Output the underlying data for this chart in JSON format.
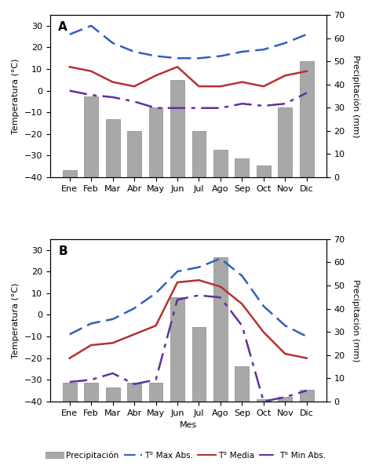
{
  "months": [
    "Ene",
    "Feb",
    "Mar",
    "Abr",
    "May",
    "Jun",
    "Jul",
    "Ago",
    "Sep",
    "Oct",
    "Nov",
    "Dic"
  ],
  "panel_A": {
    "label": "A",
    "precip": [
      3,
      35,
      25,
      20,
      30,
      42,
      20,
      12,
      8,
      5,
      30,
      50
    ],
    "t_max": [
      26,
      30,
      22,
      18,
      16,
      15,
      15,
      16,
      18,
      19,
      22,
      26
    ],
    "t_media": [
      11,
      9,
      4,
      2,
      7,
      11,
      2,
      2,
      4,
      2,
      7,
      9
    ],
    "t_min": [
      0,
      -2,
      -3,
      -5,
      -8,
      -8,
      -8,
      -8,
      -6,
      -7,
      -6,
      -1
    ],
    "ylim_temp": [
      -40,
      35
    ],
    "ylim_precip": [
      0,
      70
    ]
  },
  "panel_B": {
    "label": "B",
    "precip": [
      8,
      8,
      6,
      8,
      8,
      45,
      32,
      62,
      15,
      1,
      2,
      5
    ],
    "t_max": [
      -9,
      -4,
      -2,
      3,
      10,
      20,
      22,
      26,
      18,
      4,
      -5,
      -10
    ],
    "t_media": [
      -20,
      -14,
      -13,
      -9,
      -5,
      15,
      16,
      13,
      5,
      -8,
      -18,
      -20
    ],
    "t_min": [
      -31,
      -30,
      -27,
      -32,
      -30,
      7,
      9,
      8,
      -5,
      -40,
      -38,
      -35
    ],
    "ylim_temp": [
      -40,
      35
    ],
    "ylim_precip": [
      0,
      70
    ]
  },
  "bar_color": "#a8a8a8",
  "bar_edgecolor": "#888888",
  "t_max_color": "#3060c0",
  "t_media_color": "#b83030",
  "t_min_color": "#6030a0",
  "ylabel_left": "Temperatura (°C)",
  "ylabel_right": "Precipitación (mm)",
  "xlabel": "Mes",
  "legend_labels": [
    "Precipitación",
    "T° Max Abs.",
    "T° Media",
    "T° Min Abs."
  ]
}
